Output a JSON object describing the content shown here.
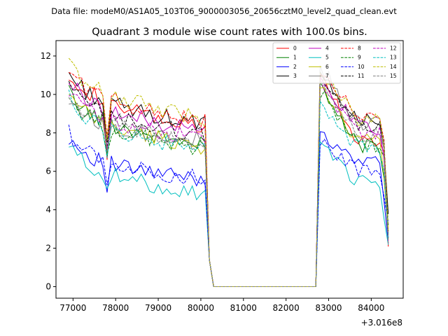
{
  "suptitle": "Data file: modeM0/AS1A05_103T06_9000003056_20656cztM0_level2_quad_clean.evt",
  "chart_data": {
    "type": "line",
    "title": "Quadrant 3 module wise count rates with 100.0s bins.",
    "xlabel": "",
    "ylabel": "",
    "x_offset_label": "+3.016e8",
    "x_offset": 301600000,
    "xlim": [
      76600,
      84750
    ],
    "ylim": [
      -0.6,
      12.8
    ],
    "xticks": [
      77000,
      78000,
      79000,
      80000,
      81000,
      82000,
      83000,
      84000
    ],
    "xtick_labels": [
      "77000",
      "78000",
      "79000",
      "80000",
      "81000",
      "82000",
      "83000",
      "84000"
    ],
    "yticks": [
      0,
      2,
      4,
      6,
      8,
      10,
      12
    ],
    "ytick_labels": [
      "0",
      "2",
      "4",
      "6",
      "8",
      "10",
      "12"
    ],
    "grid": false,
    "legend_position": "top-right",
    "bin_seconds": 100,
    "segments": [
      {
        "x_start": 76900,
        "x_end": 80100
      },
      {
        "x_start": 82800,
        "x_end": 84200
      }
    ],
    "gap_x": [
      80200,
      80300,
      80400,
      82700
    ],
    "series": [
      {
        "name": "0",
        "color": "#ff0000",
        "dash": "solid",
        "level1": 9.8,
        "level2": 8.6,
        "peak": 11.0,
        "dip": 6.6
      },
      {
        "name": "1",
        "color": "#008000",
        "dash": "solid",
        "level1": 8.7,
        "level2": 8.2,
        "peak": 10.3,
        "dip": 6.8
      },
      {
        "name": "2",
        "color": "#0000ff",
        "dash": "solid",
        "level1": 6.4,
        "level2": 7.3,
        "peak": 8.1,
        "dip": 4.9
      },
      {
        "name": "3",
        "color": "#000000",
        "dash": "solid",
        "level1": 9.7,
        "level2": 9.5,
        "peak": 11.4,
        "dip": 7.5
      },
      {
        "name": "4",
        "color": "#bf00bf",
        "dash": "solid",
        "level1": 9.3,
        "level2": 9.2,
        "peak": 10.8,
        "dip": 6.9
      },
      {
        "name": "5",
        "color": "#00bfbf",
        "dash": "solid",
        "level1": 5.9,
        "level2": 6.3,
        "peak": 7.3,
        "dip": 5.1
      },
      {
        "name": "6",
        "color": "#bfbf00",
        "dash": "solid",
        "level1": 8.5,
        "level2": 8.5,
        "peak": 10.5,
        "dip": 7.0
      },
      {
        "name": "7",
        "color": "#808080",
        "dash": "solid",
        "level1": 8.4,
        "level2": 9.4,
        "peak": 11.5,
        "dip": 7.1
      },
      {
        "name": "8",
        "color": "#ff0000",
        "dash": "dashed",
        "level1": 9.9,
        "level2": 9.7,
        "peak": 11.3,
        "dip": 7.8
      },
      {
        "name": "9",
        "color": "#008000",
        "dash": "dashed",
        "level1": 8.4,
        "level2": 8.3,
        "peak": 10.1,
        "dip": 6.9
      },
      {
        "name": "10",
        "color": "#0000ff",
        "dash": "dashed",
        "level1": 6.6,
        "level2": 7.0,
        "peak": 7.5,
        "dip": 5.3
      },
      {
        "name": "11",
        "color": "#000000",
        "dash": "dashed",
        "level1": 9.0,
        "level2": 9.2,
        "peak": 10.9,
        "dip": 7.2
      },
      {
        "name": "12",
        "color": "#bf00bf",
        "dash": "dashed",
        "level1": 8.8,
        "level2": 8.9,
        "peak": 10.6,
        "dip": 7.1
      },
      {
        "name": "13",
        "color": "#00bfbf",
        "dash": "dashed",
        "level1": 8.4,
        "level2": 8.1,
        "peak": 9.6,
        "dip": 6.7
      },
      {
        "name": "14",
        "color": "#bfbf00",
        "dash": "dashed",
        "level1": 10.2,
        "level2": 9.6,
        "peak": 11.2,
        "dip": 7.6
      },
      {
        "name": "15",
        "color": "#808080",
        "dash": "dashed",
        "level1": 8.5,
        "level2": 8.8,
        "peak": 10.4,
        "dip": 7.0
      }
    ]
  }
}
